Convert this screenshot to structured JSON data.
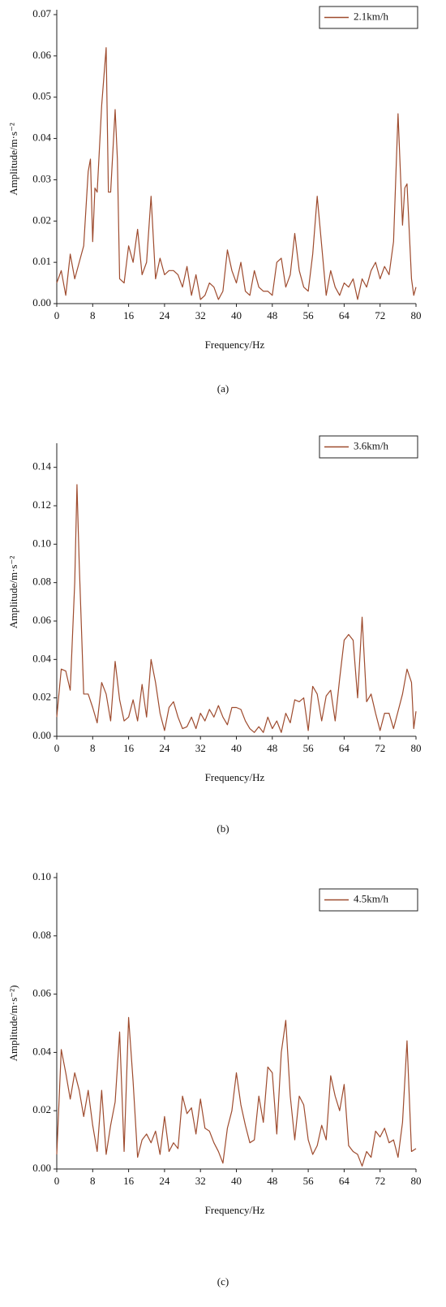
{
  "chart_data": [
    {
      "type": "line",
      "x": [
        0,
        1,
        2,
        3,
        4,
        5,
        6,
        7,
        7.5,
        8,
        8.5,
        9,
        10,
        11,
        11.5,
        12,
        13,
        13.5,
        14,
        15,
        16,
        17,
        18,
        19,
        20,
        21,
        22,
        23,
        24,
        25,
        26,
        27,
        28,
        29,
        30,
        31,
        32,
        33,
        34,
        35,
        36,
        37,
        38,
        39,
        40,
        41,
        42,
        43,
        44,
        45,
        46,
        47,
        48,
        49,
        50,
        51,
        52,
        53,
        54,
        55,
        56,
        57,
        58,
        59,
        60,
        61,
        62,
        63,
        64,
        65,
        66,
        67,
        68,
        69,
        70,
        71,
        72,
        73,
        74,
        75,
        76,
        77,
        77.5,
        78,
        79,
        79.5,
        80
      ],
      "series": [
        {
          "name": "2.1km/h",
          "color": "#9e4b2e",
          "values": [
            0.005,
            0.008,
            0.002,
            0.012,
            0.006,
            0.01,
            0.014,
            0.032,
            0.035,
            0.015,
            0.028,
            0.027,
            0.048,
            0.062,
            0.027,
            0.027,
            0.047,
            0.035,
            0.006,
            0.005,
            0.014,
            0.01,
            0.018,
            0.007,
            0.01,
            0.026,
            0.006,
            0.011,
            0.007,
            0.008,
            0.008,
            0.007,
            0.004,
            0.009,
            0.002,
            0.007,
            0.001,
            0.002,
            0.005,
            0.004,
            0.001,
            0.003,
            0.013,
            0.008,
            0.005,
            0.01,
            0.003,
            0.002,
            0.008,
            0.004,
            0.003,
            0.003,
            0.002,
            0.01,
            0.011,
            0.004,
            0.007,
            0.017,
            0.008,
            0.004,
            0.003,
            0.012,
            0.026,
            0.014,
            0.002,
            0.008,
            0.004,
            0.002,
            0.005,
            0.004,
            0.006,
            0.001,
            0.006,
            0.004,
            0.008,
            0.01,
            0.006,
            0.009,
            0.007,
            0.015,
            0.046,
            0.019,
            0.028,
            0.029,
            0.006,
            0.002,
            0.004
          ]
        }
      ],
      "xlabel": "Frequency/Hz",
      "ylabel": "Amplitude/m·s⁻²",
      "caption": "(a)",
      "xlim": [
        0,
        80
      ],
      "ylim": [
        0,
        0.07
      ],
      "xticks": [
        0,
        8,
        16,
        24,
        32,
        40,
        48,
        56,
        64,
        72,
        80
      ],
      "yticks": [
        {
          "value": 0,
          "label": "0.00"
        },
        0.01,
        0.02,
        0.03,
        0.04,
        0.05,
        0.06,
        0.07
      ],
      "legend": "upper right"
    },
    {
      "type": "line",
      "x": [
        0,
        1,
        2,
        3,
        4,
        4.5,
        5,
        6,
        7,
        8,
        9,
        10,
        11,
        12,
        13,
        14,
        15,
        16,
        17,
        18,
        19,
        20,
        21,
        22,
        23,
        24,
        25,
        26,
        27,
        28,
        29,
        30,
        31,
        32,
        33,
        34,
        35,
        36,
        37,
        38,
        39,
        40,
        41,
        42,
        43,
        44,
        45,
        46,
        47,
        48,
        49,
        50,
        51,
        52,
        53,
        54,
        55,
        56,
        57,
        58,
        59,
        60,
        61,
        62,
        63,
        64,
        65,
        66,
        67,
        68,
        69,
        70,
        71,
        72,
        73,
        74,
        75,
        76,
        77,
        78,
        79,
        79.5,
        80
      ],
      "series": [
        {
          "name": "3.6km/h",
          "color": "#9e4b2e",
          "values": [
            0.01,
            0.035,
            0.034,
            0.024,
            0.08,
            0.131,
            0.09,
            0.022,
            0.022,
            0.015,
            0.007,
            0.028,
            0.022,
            0.008,
            0.039,
            0.019,
            0.008,
            0.01,
            0.019,
            0.008,
            0.027,
            0.01,
            0.04,
            0.028,
            0.012,
            0.003,
            0.015,
            0.018,
            0.01,
            0.004,
            0.005,
            0.01,
            0.004,
            0.012,
            0.008,
            0.014,
            0.01,
            0.016,
            0.01,
            0.006,
            0.015,
            0.015,
            0.014,
            0.008,
            0.004,
            0.002,
            0.005,
            0.002,
            0.01,
            0.004,
            0.008,
            0.002,
            0.012,
            0.007,
            0.019,
            0.018,
            0.02,
            0.003,
            0.026,
            0.022,
            0.008,
            0.021,
            0.024,
            0.008,
            0.03,
            0.05,
            0.053,
            0.05,
            0.02,
            0.062,
            0.018,
            0.022,
            0.012,
            0.003,
            0.012,
            0.012,
            0.004,
            0.013,
            0.022,
            0.035,
            0.028,
            0.004,
            0.013
          ]
        }
      ],
      "xlabel": "Frequency/Hz",
      "ylabel": "Amplitude/m·s⁻²",
      "caption": "(b)",
      "xlim": [
        0,
        80
      ],
      "ylim": [
        0,
        0.15
      ],
      "xticks": [
        0,
        8,
        16,
        24,
        32,
        40,
        48,
        56,
        64,
        72,
        80
      ],
      "yticks": [
        {
          "value": 0,
          "label": "0.00"
        },
        0.02,
        0.04,
        0.06,
        0.08,
        {
          "value": 0.1,
          "label": "0.10"
        },
        0.12,
        0.14
      ],
      "legend": "upper right"
    },
    {
      "type": "line",
      "x": [
        0,
        1,
        2,
        3,
        4,
        5,
        6,
        7,
        8,
        9,
        10,
        11,
        12,
        13,
        14,
        15,
        16,
        17,
        18,
        19,
        20,
        21,
        22,
        23,
        24,
        25,
        26,
        27,
        28,
        29,
        30,
        31,
        32,
        33,
        34,
        35,
        36,
        37,
        38,
        39,
        40,
        41,
        42,
        43,
        44,
        45,
        46,
        47,
        48,
        49,
        50,
        51,
        52,
        53,
        54,
        55,
        56,
        57,
        58,
        59,
        60,
        61,
        62,
        63,
        64,
        65,
        66,
        67,
        68,
        69,
        70,
        71,
        72,
        73,
        74,
        75,
        76,
        77,
        78,
        79,
        80
      ],
      "series": [
        {
          "name": "4.5km/h",
          "color": "#9e4b2e",
          "values": [
            0.005,
            0.041,
            0.033,
            0.024,
            0.033,
            0.027,
            0.018,
            0.027,
            0.015,
            0.006,
            0.027,
            0.005,
            0.015,
            0.023,
            0.047,
            0.006,
            0.052,
            0.03,
            0.004,
            0.01,
            0.012,
            0.009,
            0.013,
            0.005,
            0.018,
            0.006,
            0.009,
            0.007,
            0.025,
            0.019,
            0.021,
            0.012,
            0.024,
            0.014,
            0.013,
            0.009,
            0.006,
            0.002,
            0.014,
            0.02,
            0.033,
            0.022,
            0.015,
            0.009,
            0.01,
            0.025,
            0.016,
            0.035,
            0.033,
            0.012,
            0.04,
            0.051,
            0.025,
            0.01,
            0.025,
            0.022,
            0.01,
            0.005,
            0.008,
            0.015,
            0.01,
            0.032,
            0.025,
            0.02,
            0.029,
            0.008,
            0.006,
            0.005,
            0.001,
            0.006,
            0.004,
            0.013,
            0.011,
            0.014,
            0.009,
            0.01,
            0.004,
            0.016,
            0.044,
            0.006,
            0.007
          ]
        }
      ],
      "xlabel": "Frequency/Hz",
      "ylabel": "Amplitude/m·s⁻²)",
      "caption": "(c)",
      "xlim": [
        0,
        80
      ],
      "ylim": [
        0,
        0.1
      ],
      "xticks": [
        0,
        8,
        16,
        24,
        32,
        40,
        48,
        56,
        64,
        72,
        80
      ],
      "yticks": [
        {
          "value": 0,
          "label": "0.00"
        },
        0.02,
        0.04,
        0.06,
        0.08,
        {
          "value": 0.1,
          "label": "0.10"
        }
      ],
      "legend": "upper right"
    }
  ]
}
